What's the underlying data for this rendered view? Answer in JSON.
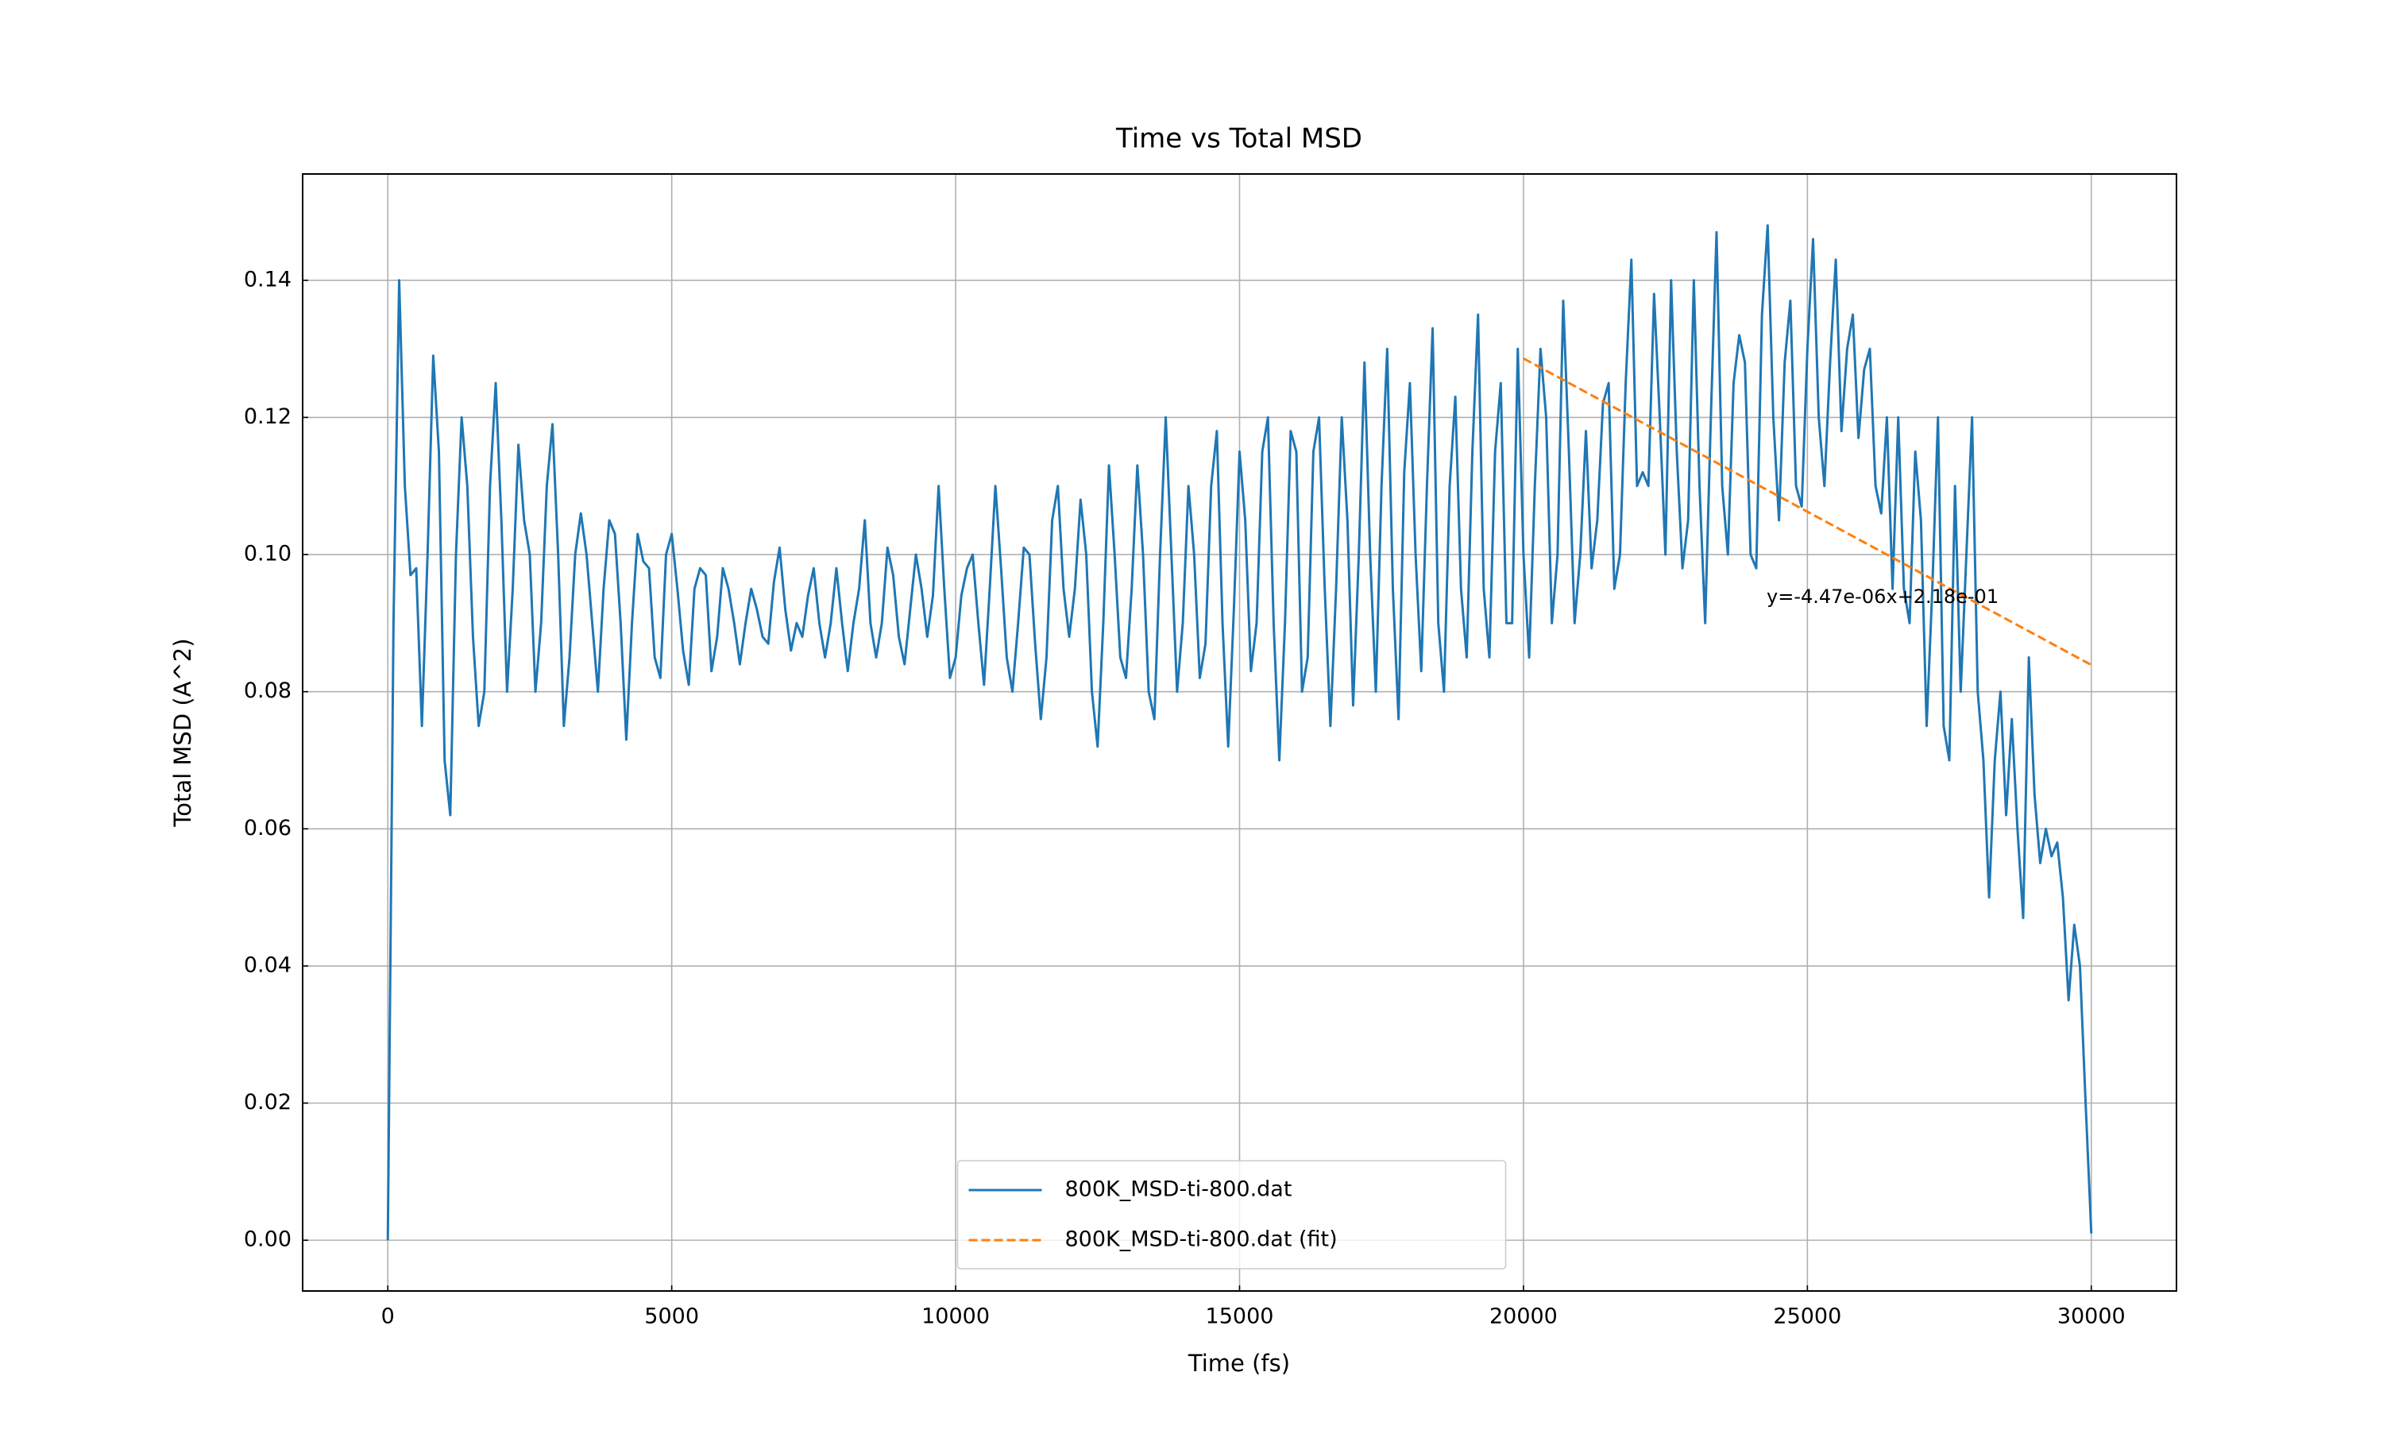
{
  "chart_data": {
    "type": "line",
    "title": "Time vs Total MSD",
    "xlabel": "Time (fs)",
    "ylabel": "Total MSD (A^2)",
    "annotation": "y=-4.47e-06x+2.18e-01",
    "xlim": [
      -1500,
      31500
    ],
    "ylim": [
      -0.0074,
      0.1555
    ],
    "xticks": [
      0,
      5000,
      10000,
      15000,
      20000,
      25000,
      30000
    ],
    "yticks": [
      {
        "value": 0,
        "label": "0.00"
      },
      0.02,
      0.04,
      0.06,
      0.08,
      {
        "value": 0.1,
        "label": "0.10"
      },
      0.12,
      0.14
    ],
    "grid": true,
    "legend": "lower center",
    "series": [
      {
        "name": "800K_MSD-ti-800.dat",
        "color": "#1f77b4",
        "style": "solid",
        "x": [
          0,
          100,
          200,
          300,
          400,
          500,
          600,
          700,
          800,
          900,
          1000,
          1100,
          1200,
          1300,
          1400,
          1500,
          1600,
          1700,
          1800,
          1900,
          2000,
          2100,
          2200,
          2300,
          2400,
          2500,
          2600,
          2700,
          2800,
          2900,
          3000,
          3100,
          3200,
          3300,
          3400,
          3500,
          3600,
          3700,
          3800,
          3900,
          4000,
          4100,
          4200,
          4300,
          4400,
          4500,
          4600,
          4700,
          4800,
          4900,
          5000,
          5100,
          5200,
          5300,
          5400,
          5500,
          5600,
          5700,
          5800,
          5900,
          6000,
          6100,
          6200,
          6300,
          6400,
          6500,
          6600,
          6700,
          6800,
          6900,
          7000,
          7100,
          7200,
          7300,
          7400,
          7500,
          7600,
          7700,
          7800,
          7900,
          8000,
          8100,
          8200,
          8300,
          8400,
          8500,
          8600,
          8700,
          8800,
          8900,
          9000,
          9100,
          9200,
          9300,
          9400,
          9500,
          9600,
          9700,
          9800,
          9900,
          10000,
          10100,
          10200,
          10300,
          10400,
          10500,
          10600,
          10700,
          10800,
          10900,
          11000,
          11100,
          11200,
          11300,
          11400,
          11500,
          11600,
          11700,
          11800,
          11900,
          12000,
          12100,
          12200,
          12300,
          12400,
          12500,
          12600,
          12700,
          12800,
          12900,
          13000,
          13100,
          13200,
          13300,
          13400,
          13500,
          13600,
          13700,
          13800,
          13900,
          14000,
          14100,
          14200,
          14300,
          14400,
          14500,
          14600,
          14700,
          14800,
          14900,
          15000,
          15100,
          15200,
          15300,
          15400,
          15500,
          15600,
          15700,
          15800,
          15900,
          16000,
          16100,
          16200,
          16300,
          16400,
          16500,
          16600,
          16700,
          16800,
          16900,
          17000,
          17100,
          17200,
          17300,
          17400,
          17500,
          17600,
          17700,
          17800,
          17900,
          18000,
          18100,
          18200,
          18300,
          18400,
          18500,
          18600,
          18700,
          18800,
          18900,
          19000,
          19100,
          19200,
          19300,
          19400,
          19500,
          19600,
          19700,
          19800,
          19900,
          20000,
          20100,
          20200,
          20300,
          20400,
          20500,
          20600,
          20700,
          20800,
          20900,
          21000,
          21100,
          21200,
          21300,
          21400,
          21500,
          21600,
          21700,
          21800,
          21900,
          22000,
          22100,
          22200,
          22300,
          22400,
          22500,
          22600,
          22700,
          22800,
          22900,
          23000,
          23100,
          23200,
          23300,
          23400,
          23500,
          23600,
          23700,
          23800,
          23900,
          24000,
          24100,
          24200,
          24300,
          24400,
          24500,
          24600,
          24700,
          24800,
          24900,
          25000,
          25100,
          25200,
          25300,
          25400,
          25500,
          25600,
          25700,
          25800,
          25900,
          26000,
          26100,
          26200,
          26300,
          26400,
          26500,
          26600,
          26700,
          26800,
          26900,
          27000,
          27100,
          27200,
          27300,
          27400,
          27500,
          27600,
          27700,
          27800,
          27900,
          28000,
          28100,
          28200,
          28300,
          28400,
          28500,
          28600,
          28700,
          28800,
          28900,
          29000,
          29100,
          29200,
          29300,
          29400,
          29500,
          29600,
          29700,
          29800,
          29900,
          30000
        ],
        "values": [
          0,
          0.09,
          0.14,
          0.11,
          0.097,
          0.098,
          0.075,
          0.1,
          0.129,
          0.115,
          0.07,
          0.062,
          0.1,
          0.12,
          0.11,
          0.088,
          0.075,
          0.08,
          0.11,
          0.125,
          0.105,
          0.08,
          0.095,
          0.116,
          0.105,
          0.1,
          0.08,
          0.09,
          0.11,
          0.119,
          0.1,
          0.075,
          0.085,
          0.1,
          0.106,
          0.1,
          0.09,
          0.08,
          0.095,
          0.105,
          0.103,
          0.09,
          0.073,
          0.09,
          0.103,
          0.099,
          0.098,
          0.085,
          0.082,
          0.1,
          0.103,
          0.095,
          0.086,
          0.081,
          0.095,
          0.098,
          0.097,
          0.083,
          0.088,
          0.098,
          0.095,
          0.09,
          0.084,
          0.09,
          0.095,
          0.092,
          0.088,
          0.087,
          0.096,
          0.101,
          0.092,
          0.086,
          0.09,
          0.088,
          0.094,
          0.098,
          0.09,
          0.085,
          0.09,
          0.098,
          0.09,
          0.083,
          0.09,
          0.095,
          0.105,
          0.09,
          0.085,
          0.09,
          0.101,
          0.097,
          0.088,
          0.084,
          0.092,
          0.1,
          0.095,
          0.088,
          0.094,
          0.11,
          0.095,
          0.082,
          0.085,
          0.094,
          0.098,
          0.1,
          0.09,
          0.081,
          0.095,
          0.11,
          0.098,
          0.085,
          0.08,
          0.09,
          0.101,
          0.1,
          0.087,
          0.076,
          0.085,
          0.105,
          0.11,
          0.095,
          0.088,
          0.095,
          0.108,
          0.1,
          0.08,
          0.072,
          0.09,
          0.113,
          0.1,
          0.085,
          0.082,
          0.095,
          0.113,
          0.1,
          0.08,
          0.076,
          0.1,
          0.12,
          0.1,
          0.08,
          0.09,
          0.11,
          0.1,
          0.082,
          0.087,
          0.11,
          0.118,
          0.09,
          0.072,
          0.092,
          0.115,
          0.105,
          0.083,
          0.09,
          0.115,
          0.12,
          0.09,
          0.07,
          0.09,
          0.118,
          0.115,
          0.08,
          0.085,
          0.115,
          0.12,
          0.095,
          0.075,
          0.095,
          0.12,
          0.105,
          0.078,
          0.1,
          0.128,
          0.1,
          0.08,
          0.11,
          0.13,
          0.095,
          0.076,
          0.112,
          0.125,
          0.1,
          0.083,
          0.11,
          0.133,
          0.09,
          0.08,
          0.11,
          0.123,
          0.095,
          0.085,
          0.115,
          0.135,
          0.095,
          0.085,
          0.115,
          0.125,
          0.09,
          0.09,
          0.13,
          0.1,
          0.085,
          0.11,
          0.13,
          0.12,
          0.09,
          0.1,
          0.137,
          0.115,
          0.09,
          0.1,
          0.118,
          0.098,
          0.105,
          0.122,
          0.125,
          0.095,
          0.1,
          0.125,
          0.143,
          0.11,
          0.112,
          0.11,
          0.138,
          0.12,
          0.1,
          0.14,
          0.115,
          0.098,
          0.105,
          0.14,
          0.11,
          0.09,
          0.12,
          0.147,
          0.11,
          0.1,
          0.125,
          0.132,
          0.128,
          0.1,
          0.098,
          0.135,
          0.148,
          0.12,
          0.105,
          0.128,
          0.137,
          0.11,
          0.107,
          0.13,
          0.146,
          0.12,
          0.11,
          0.128,
          0.143,
          0.118,
          0.13,
          0.135,
          0.117,
          0.127,
          0.13,
          0.11,
          0.106,
          0.12,
          0.095,
          0.12,
          0.095,
          0.09,
          0.115,
          0.105,
          0.075,
          0.095,
          0.12,
          0.075,
          0.07,
          0.11,
          0.08,
          0.1,
          0.12,
          0.08,
          0.07,
          0.05,
          0.07,
          0.08,
          0.062,
          0.076,
          0.06,
          0.047,
          0.085,
          0.065,
          0.055,
          0.06,
          0.056,
          0.058,
          0.05,
          0.035,
          0.046,
          0.04,
          0.02,
          0.001
        ]
      },
      {
        "name": "800K_MSD-ti-800.dat (fit)",
        "color": "#ff7f0e",
        "style": "dashed",
        "x": [
          20000,
          30000
        ],
        "values": [
          0.1286,
          0.0839
        ]
      }
    ]
  }
}
